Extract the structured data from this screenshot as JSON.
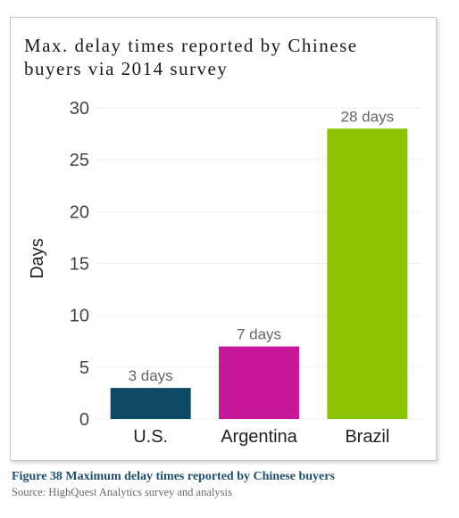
{
  "chart_data": {
    "type": "bar",
    "title": "Max. delay times reported by Chinese buyers via 2014 survey",
    "ylabel": "Days",
    "xlabel": "",
    "categories": [
      "U.S.",
      "Argentina",
      "Brazil"
    ],
    "values": [
      3,
      7,
      28
    ],
    "data_labels": [
      "3 days",
      "7 days",
      "28 days"
    ],
    "colors": [
      "#0e4a63",
      "#c8189a",
      "#8cc300"
    ],
    "ylim": [
      0,
      30
    ],
    "yticks": [
      "0",
      "5",
      "10",
      "15",
      "20",
      "25",
      "30"
    ],
    "grid": true
  },
  "caption": "Figure 38  Maximum delay times reported by Chinese buyers",
  "source": "Source: HighQuest Analytics survey and analysis"
}
